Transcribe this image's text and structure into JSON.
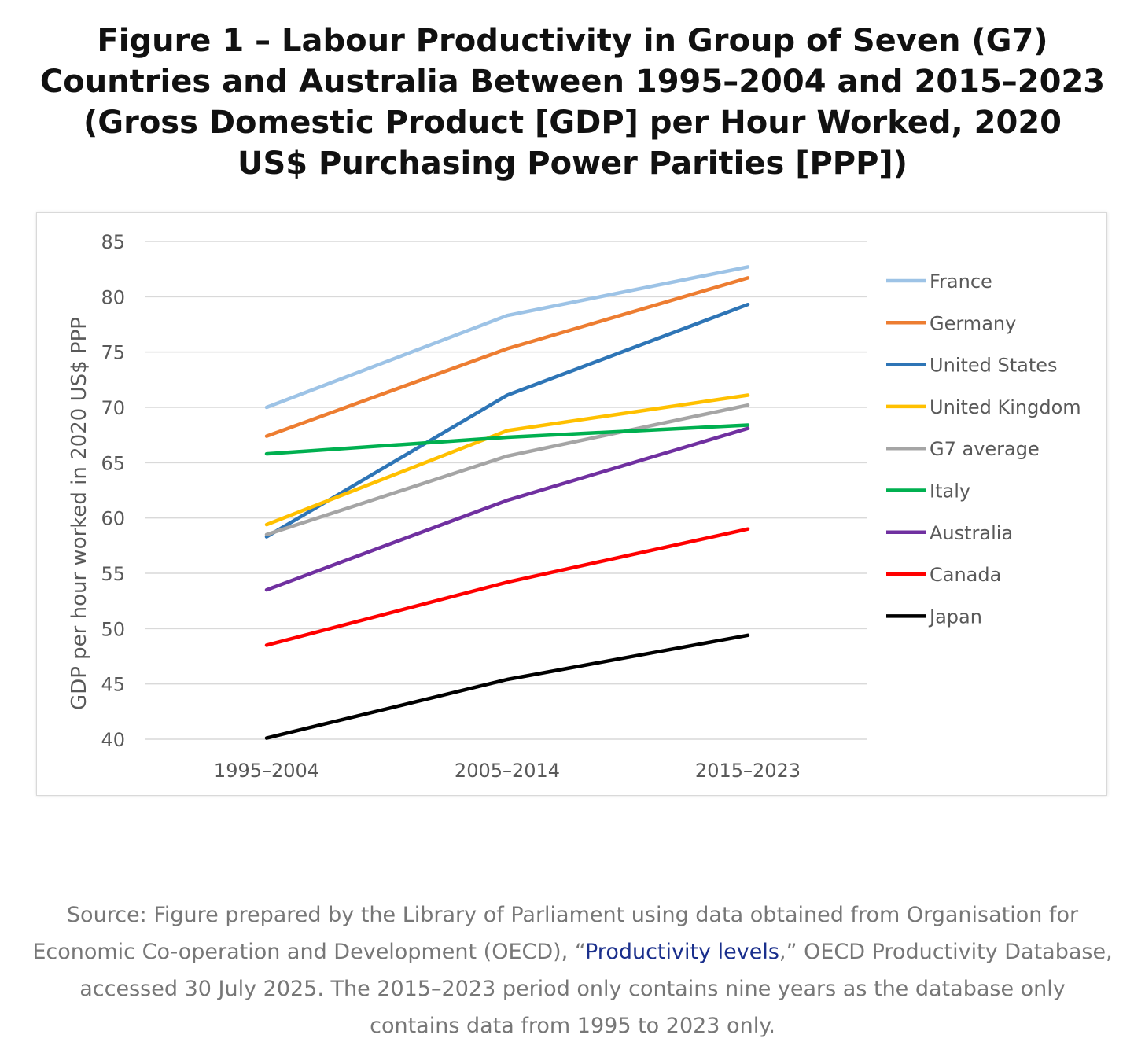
{
  "title_lines": [
    "Figure 1 – Labour Productivity in Group of Seven (G7)",
    "Countries and Australia Between 1995–2004 and 2015–2023",
    "(Gross Domestic Product [GDP] per Hour Worked, 2020",
    "US$ Purchasing Power Parities [PPP])"
  ],
  "chart_data": {
    "type": "line",
    "title": "Figure 1 – Labour Productivity in Group of Seven (G7) Countries and Australia Between 1995–2004 and 2015–2023 (Gross Domestic Product [GDP] per Hour Worked, 2020 US$ Purchasing Power Parities [PPP])",
    "xlabel": "",
    "ylabel": "GDP per hour worked in 2020 US$ PPP",
    "categories": [
      "1995–2004",
      "2005–2014",
      "2015–2023"
    ],
    "ylim": [
      40,
      85
    ],
    "yticks": [
      40,
      45,
      50,
      55,
      60,
      65,
      70,
      75,
      80,
      85
    ],
    "grid": true,
    "legend_position": "right",
    "series": [
      {
        "name": "France",
        "color": "#9dc3e6",
        "values": [
          70.0,
          78.3,
          82.7
        ]
      },
      {
        "name": "Germany",
        "color": "#ed7d31",
        "values": [
          67.4,
          75.3,
          81.7
        ]
      },
      {
        "name": "United States",
        "color": "#2e75b6",
        "values": [
          58.3,
          71.1,
          79.3
        ]
      },
      {
        "name": "United Kingdom",
        "color": "#ffc000",
        "values": [
          59.4,
          67.9,
          71.1
        ]
      },
      {
        "name": "G7 average",
        "color": "#a5a5a5",
        "values": [
          58.5,
          65.6,
          70.2
        ]
      },
      {
        "name": "Italy",
        "color": "#00b050",
        "values": [
          65.8,
          67.3,
          68.4
        ]
      },
      {
        "name": "Australia",
        "color": "#7030a0",
        "values": [
          53.5,
          61.6,
          68.1
        ]
      },
      {
        "name": "Canada",
        "color": "#ff0000",
        "values": [
          48.5,
          54.2,
          59.0
        ]
      },
      {
        "name": "Japan",
        "color": "#000000",
        "values": [
          40.1,
          45.4,
          49.4
        ]
      }
    ]
  },
  "source": {
    "prefix": "Source: Figure prepared by the Library of Parliament using data obtained from Organisation for Economic Co-operation and Development (OECD), “",
    "link_text": "Productivity levels",
    "suffix": ",” OECD Productivity Database, accessed 30 July 2025. The 2015–2023 period only contains nine years as the database only contains data from 1995 to 2023 only."
  }
}
